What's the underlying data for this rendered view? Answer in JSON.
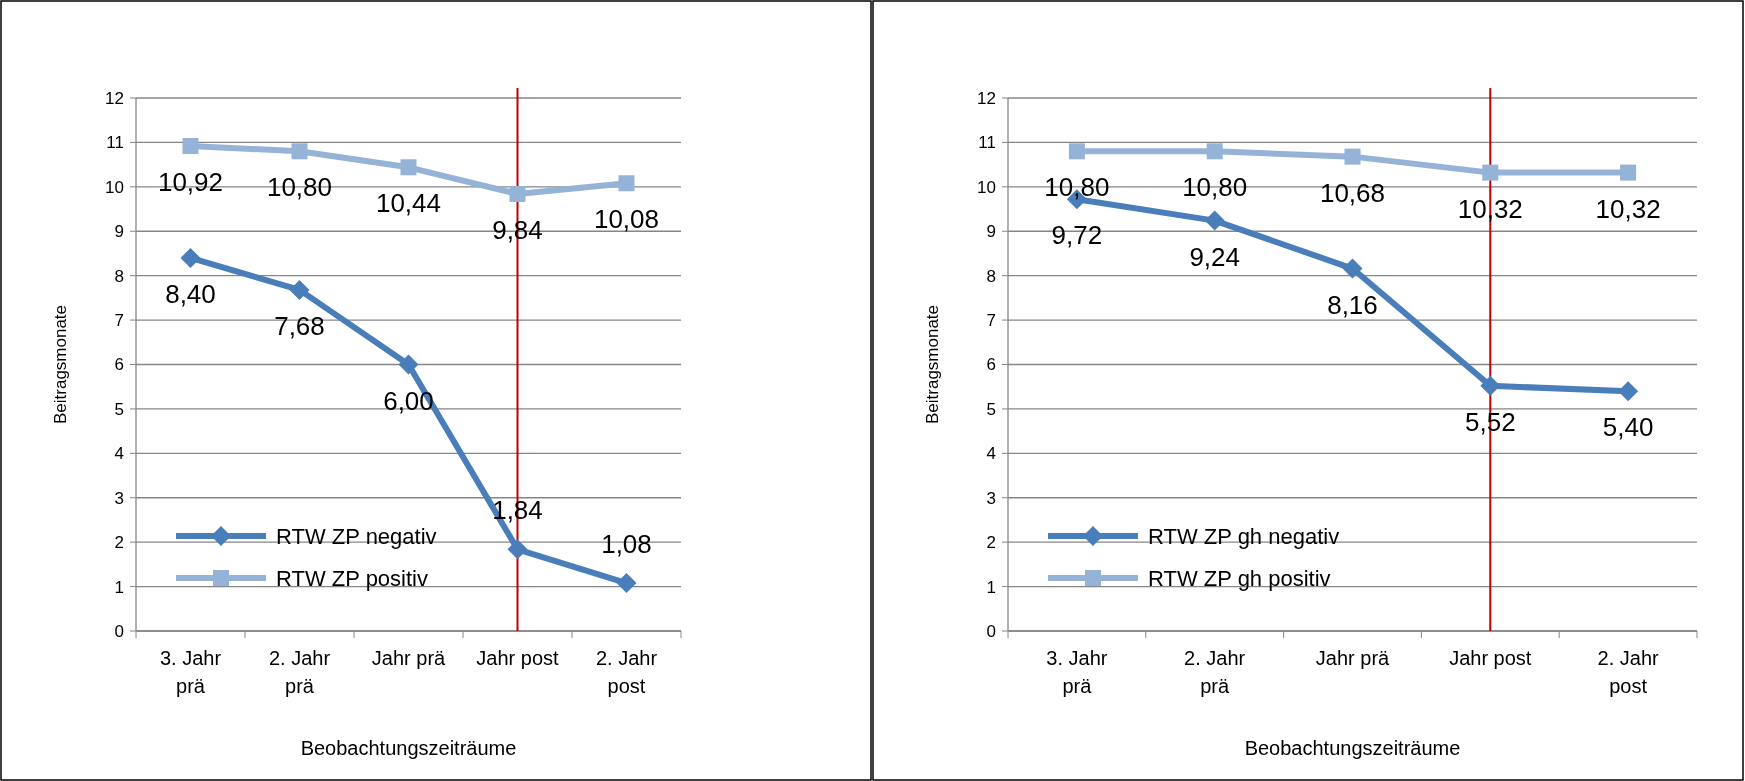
{
  "chart_data": [
    {
      "type": "line",
      "xlabel": "Beobachtungszeiträume",
      "ylabel": "Beitragsmonate",
      "categories": [
        "3. Jahr prä",
        "2. Jahr prä",
        "Jahr prä",
        "Jahr post",
        "2. Jahr post"
      ],
      "series": [
        {
          "name": "RTW ZP negativ",
          "color": "#4a7ebb",
          "marker": "diamond",
          "values": [
            8.4,
            7.68,
            6.0,
            1.84,
            1.08
          ],
          "value_labels": [
            "8,40",
            "7,68",
            "6,00",
            "1,84",
            "1,08"
          ]
        },
        {
          "name": "RTW ZP positiv",
          "color": "#95b3d7",
          "marker": "square",
          "values": [
            10.92,
            10.8,
            10.44,
            9.84,
            10.08
          ],
          "value_labels": [
            "10,92",
            "10,80",
            "10,44",
            "9,84",
            "10,08"
          ]
        }
      ],
      "ylim": [
        0,
        12
      ],
      "yticks": [
        0,
        1,
        2,
        3,
        4,
        5,
        6,
        7,
        8,
        9,
        10,
        11,
        12
      ],
      "grid": "y",
      "legend": "bottom left",
      "ref_lines": [
        {
          "axis": "x",
          "value": "Jahr post",
          "color": "#c00000"
        }
      ]
    },
    {
      "type": "line",
      "xlabel": "Beobachtungszeiträume",
      "ylabel": "Beitragsmonate",
      "categories": [
        "3. Jahr prä",
        "2. Jahr prä",
        "Jahr prä",
        "Jahr post",
        "2. Jahr post"
      ],
      "series": [
        {
          "name": "RTW ZP gh negativ",
          "color": "#4a7ebb",
          "marker": "diamond",
          "values": [
            9.72,
            9.24,
            8.16,
            5.52,
            5.4
          ],
          "value_labels": [
            "9,72",
            "9,24",
            "8,16",
            "5,52",
            "5,40"
          ]
        },
        {
          "name": "RTW ZP gh positiv",
          "color": "#95b3d7",
          "marker": "square",
          "values": [
            10.8,
            10.8,
            10.68,
            10.32,
            10.32
          ],
          "value_labels": [
            "10,80",
            "10,80",
            "10,68",
            "10,32",
            "10,32"
          ]
        }
      ],
      "ylim": [
        0,
        12
      ],
      "yticks": [
        0,
        1,
        2,
        3,
        4,
        5,
        6,
        7,
        8,
        9,
        10,
        11,
        12
      ],
      "grid": "y",
      "legend": "bottom left",
      "ref_lines": [
        {
          "axis": "x",
          "value": "Jahr post",
          "color": "#c00000"
        }
      ]
    }
  ]
}
